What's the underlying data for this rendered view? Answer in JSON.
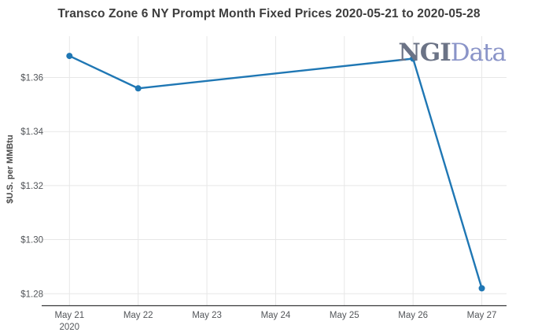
{
  "logo": {
    "part1": "NGI",
    "part2": "Data",
    "part1_color": "#6b7386",
    "part2_color": "#8a94c8"
  },
  "colors": {
    "line": "#1f77b4",
    "grid": "#e7e7e7",
    "axis_line": "#37383a",
    "tick_text": "#53565a",
    "title_text": "#3d3d3d"
  },
  "chart_data": {
    "type": "line",
    "title": "Transco Zone 6 NY Prompt Month Fixed Prices 2020-05-21 to 2020-05-28",
    "xlabel": "",
    "ylabel": "$U.S. per MMBtu",
    "x_tick_labels": [
      "May 21",
      "May 22",
      "May 23",
      "May 24",
      "May 25",
      "May 26",
      "May 27"
    ],
    "x_tick_sublabels": [
      "2020",
      "",
      "",
      "",
      "",
      "",
      ""
    ],
    "y_tick_labels": [
      "$1.36",
      "$1.34",
      "$1.32",
      "$1.30",
      "$1.28"
    ],
    "y_tick_values": [
      1.36,
      1.34,
      1.32,
      1.3,
      1.28
    ],
    "xlim": [
      -0.404,
      6.36
    ],
    "ylim": [
      1.2757,
      1.3753
    ],
    "grid": true,
    "legend": "none",
    "series": [
      {
        "name": "Transco Zone 6 NY Prompt Month Fixed Price",
        "color": "#1f77b4",
        "points": [
          {
            "x": "May 21",
            "xi": 0,
            "y": 1.368
          },
          {
            "x": "May 22",
            "xi": 1,
            "y": 1.356
          },
          {
            "x": "May 26",
            "xi": 5,
            "y": 1.367
          },
          {
            "x": "May 27",
            "xi": 6,
            "y": 1.282
          }
        ]
      }
    ]
  }
}
